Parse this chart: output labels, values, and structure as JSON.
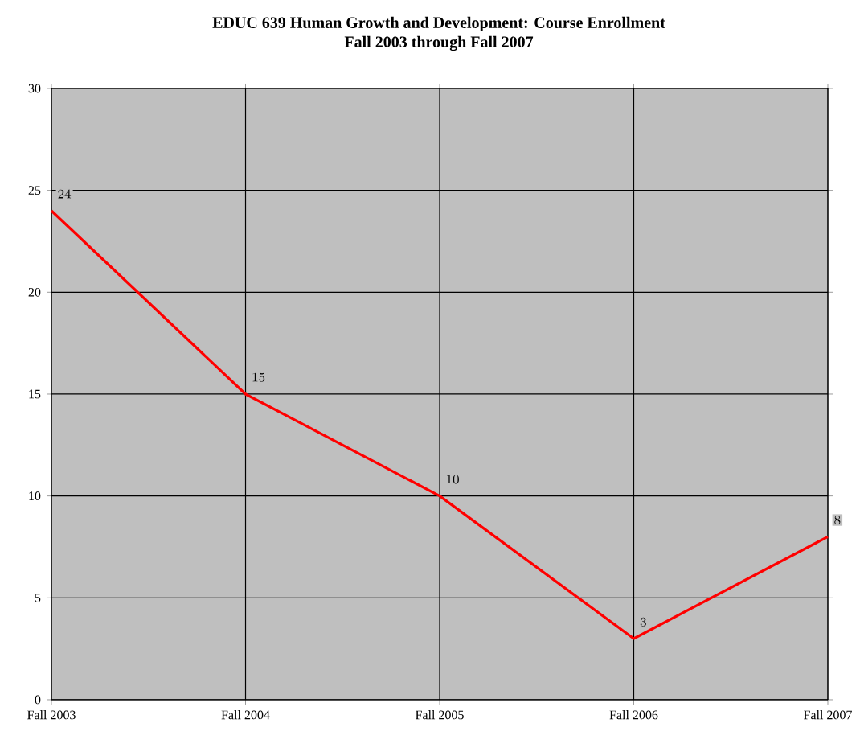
{
  "chart_data": {
    "type": "line",
    "title": "EDUC 639 Human Growth and Development: Course Enrollment",
    "subtitle": "Fall 2003 through Fall 2007",
    "categories": [
      "Fall 2003",
      "Fall 2004",
      "Fall 2005",
      "Fall 2006",
      "Fall 2007"
    ],
    "values": [
      24,
      15,
      10,
      3,
      8
    ],
    "color": "#ff0000",
    "ylim": [
      0,
      30
    ],
    "yticks": [
      0,
      5,
      10,
      15,
      20,
      25,
      30
    ],
    "grid": true,
    "data_labels": true
  }
}
